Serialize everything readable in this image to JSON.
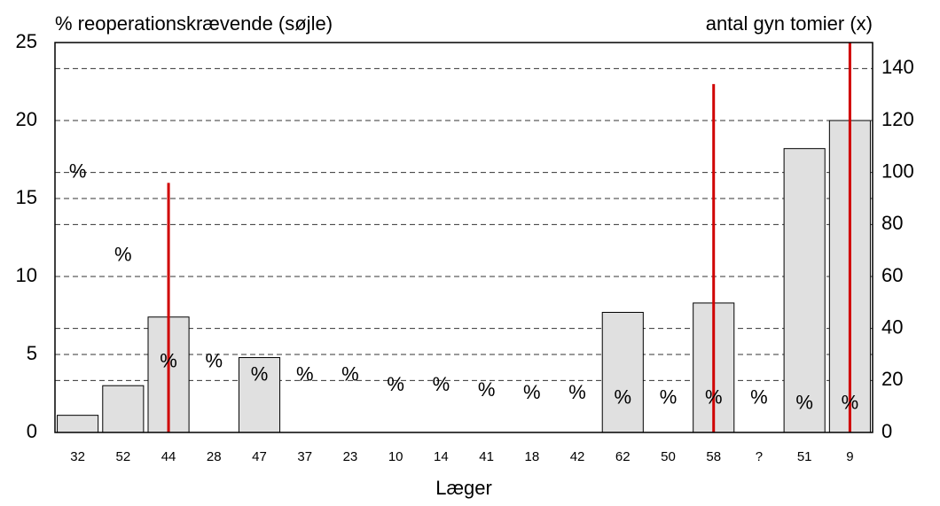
{
  "chart_data": {
    "type": "bar",
    "title": "% reoperationskrævende (søjle)",
    "y2_title": "antal gyn tomier (x)",
    "x_label": "Læger",
    "categories": [
      "32",
      "52",
      "44",
      "28",
      "47",
      "37",
      "23",
      "10",
      "14",
      "41",
      "18",
      "42",
      "62",
      "50",
      "58",
      "?",
      "51",
      "9"
    ],
    "series": [
      {
        "name": "% reoperationskrævende",
        "color": "#e0e0e0",
        "values": [
          1.1,
          3.0,
          7.4,
          0,
          4.8,
          0,
          0,
          0,
          0,
          0,
          0,
          0,
          7.7,
          0,
          8.3,
          0,
          18.2,
          20.0
        ]
      },
      {
        "name": "antal gyn tomier",
        "axis": "y2",
        "marker": "%",
        "values": [
          100,
          68,
          27,
          27,
          22,
          22,
          22,
          18,
          18,
          16,
          15,
          15,
          13,
          13,
          13,
          13,
          11,
          11
        ]
      },
      {
        "axis": "y2",
        "color": "#d00000",
        "values": [
          null,
          null,
          96,
          null,
          null,
          null,
          null,
          null,
          null,
          null,
          null,
          null,
          null,
          null,
          134,
          null,
          null,
          150
        ]
      }
    ],
    "ylim": [
      0,
      25
    ],
    "yticks": [
      0,
      5,
      10,
      15,
      20,
      25
    ],
    "y2lim": [
      0,
      150
    ],
    "y2ticks": [
      0,
      20,
      40,
      60,
      80,
      100,
      120,
      140
    ],
    "grid": true
  }
}
